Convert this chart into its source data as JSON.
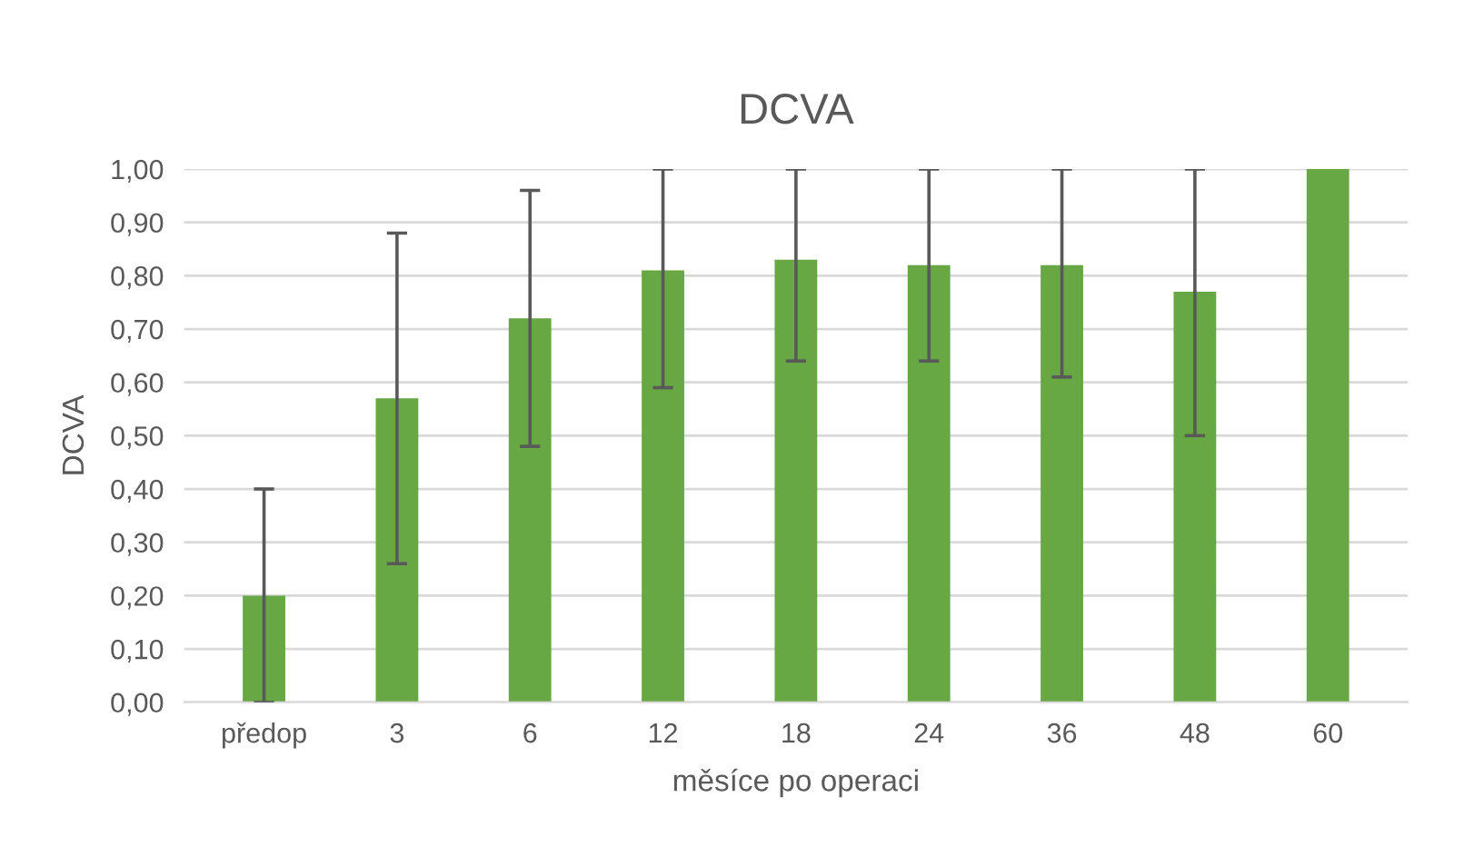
{
  "chart_data": {
    "type": "bar",
    "title": "DCVA",
    "xlabel": "měsíce po operaci",
    "ylabel": "DCVA",
    "categories": [
      "předop",
      "3",
      "6",
      "12",
      "18",
      "24",
      "36",
      "48",
      "60"
    ],
    "values": [
      0.2,
      0.57,
      0.72,
      0.81,
      0.83,
      0.82,
      0.82,
      0.77,
      1.0
    ],
    "errors": [
      [
        0,
        0.4
      ],
      [
        0.26,
        0.88
      ],
      [
        0.48,
        0.96
      ],
      [
        0.59,
        1.0
      ],
      [
        0.64,
        1.0
      ],
      [
        0.64,
        1.0
      ],
      [
        0.61,
        1.0
      ],
      [
        0.5,
        1.0
      ],
      null
    ],
    "color": "#67a844",
    "ylim": [
      0,
      1
    ],
    "yticks": [
      {
        "value": 0,
        "label": "0,00"
      },
      {
        "value": 0.1,
        "label": "0,10"
      },
      {
        "value": 0.2,
        "label": "0,20"
      },
      {
        "value": 0.3,
        "label": "0,30"
      },
      {
        "value": 0.4,
        "label": "0,40"
      },
      {
        "value": 0.5,
        "label": "0,50"
      },
      {
        "value": 0.6,
        "label": "0,60"
      },
      {
        "value": 0.7,
        "label": "0,70"
      },
      {
        "value": 0.8,
        "label": "0,80"
      },
      {
        "value": 0.9,
        "label": "0,90"
      },
      {
        "value": 1.0,
        "label": "1,00"
      }
    ],
    "grid": "y"
  }
}
